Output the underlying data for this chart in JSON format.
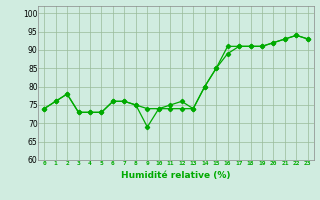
{
  "line1_y": [
    74,
    76,
    78,
    73,
    73,
    73,
    76,
    76,
    75,
    69,
    74,
    74,
    74,
    74,
    80,
    85,
    89,
    91,
    91,
    91,
    92,
    93,
    94,
    93
  ],
  "line2_y": [
    74,
    76,
    78,
    73,
    73,
    73,
    76,
    76,
    75,
    74,
    74,
    75,
    76,
    74,
    80,
    85,
    91,
    91,
    91,
    91,
    92,
    93,
    94,
    93
  ],
  "line_color": "#00aa00",
  "bg_color": "#d0ece0",
  "grid_color": "#99bb99",
  "xlabel": "Humidité relative (%)",
  "ylim": [
    60,
    102
  ],
  "yticks": [
    60,
    65,
    70,
    75,
    80,
    85,
    90,
    95,
    100
  ],
  "xticks": [
    0,
    1,
    2,
    3,
    4,
    5,
    6,
    7,
    8,
    9,
    10,
    11,
    12,
    13,
    14,
    15,
    16,
    17,
    18,
    19,
    20,
    21,
    22,
    23
  ]
}
